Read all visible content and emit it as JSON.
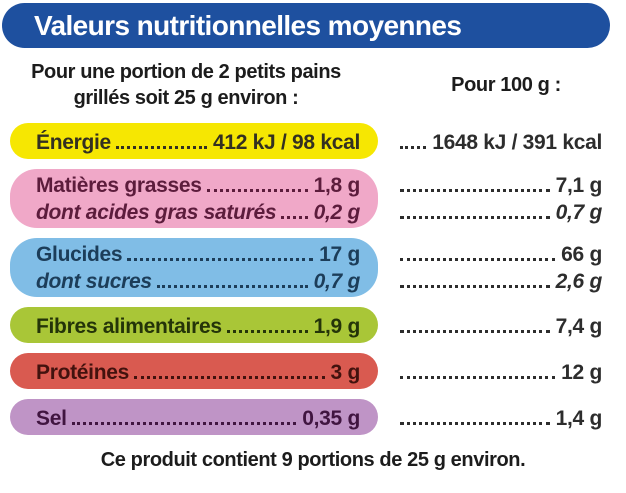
{
  "header": {
    "title": "Valeurs nutritionnelles moyennes",
    "bg": "#1e509f",
    "text_color": "#ffffff"
  },
  "columns": {
    "portion_header_line1": "Pour une portion de 2 petits pains",
    "portion_header_line2": "grillés soit 25 g environ :",
    "per100_header": "Pour 100 g :"
  },
  "rows": [
    {
      "id": "energie",
      "bg": "#f6e702",
      "color": "#333021",
      "lines": [
        {
          "label": "Énergie",
          "value": "412 kJ / 98 kcal",
          "value_100": "1648 kJ / 391 kcal",
          "italic": false
        }
      ]
    },
    {
      "id": "matieres-grasses",
      "bg": "#f0a8c8",
      "color": "#5c1c3c",
      "lines": [
        {
          "label": "Matières grasses",
          "value": "1,8 g",
          "value_100": "7,1 g",
          "italic": false
        },
        {
          "label": "dont acides gras saturés",
          "value": "0,2 g",
          "value_100": "0,7 g",
          "italic": true
        }
      ]
    },
    {
      "id": "glucides",
      "bg": "#80bde6",
      "color": "#1c3d59",
      "lines": [
        {
          "label": "Glucides",
          "value": "17 g",
          "value_100": "66 g",
          "italic": false
        },
        {
          "label": "dont sucres",
          "value": "0,7 g",
          "value_100": "2,6 g",
          "italic": true
        }
      ]
    },
    {
      "id": "fibres",
      "bg": "#a9c637",
      "color": "#243409",
      "lines": [
        {
          "label": "Fibres alimentaires",
          "value": "1,9 g",
          "value_100": "7,4 g",
          "italic": false
        }
      ]
    },
    {
      "id": "proteines",
      "bg": "#d95a50",
      "color": "#42120e",
      "lines": [
        {
          "label": "Protéines",
          "value": "3 g",
          "value_100": "12 g",
          "italic": false
        }
      ]
    },
    {
      "id": "sel",
      "bg": "#bf94c6",
      "color": "#401540",
      "lines": [
        {
          "label": "Sel",
          "value": "0,35 g",
          "value_100": "1,4 g",
          "italic": false
        }
      ]
    }
  ],
  "footer": {
    "text": "Ce produit contient 9 portions de 25 g environ."
  },
  "right_column_color": "#2d2d2d"
}
